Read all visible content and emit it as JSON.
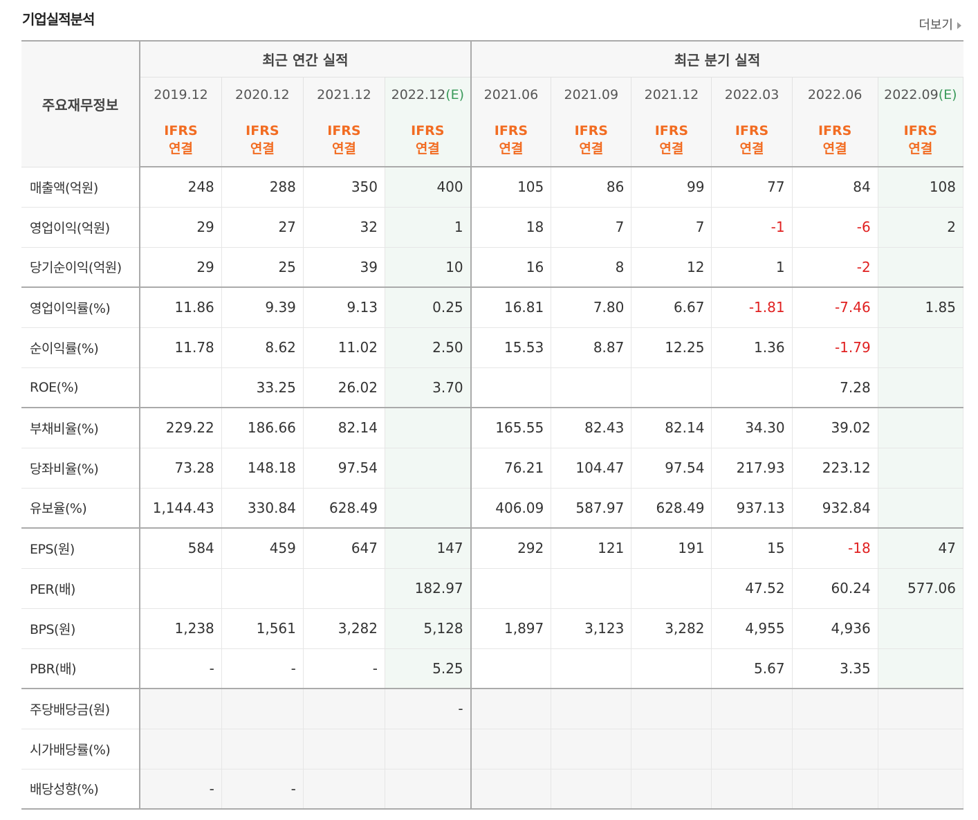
{
  "title": "기업실적분석",
  "more": "더보기",
  "header": {
    "row_label": "주요재무정보",
    "annual_group": "최근 연간 실적",
    "quarter_group": "최근 분기 실적",
    "est_mark": "(E)",
    "ifrs_line1": "IFRS",
    "ifrs_line2": "연결",
    "periods": [
      "2019.12",
      "2020.12",
      "2021.12",
      "2022.12",
      "2021.06",
      "2021.09",
      "2021.12",
      "2022.03",
      "2022.06",
      "2022.09"
    ]
  },
  "rows": [
    {
      "label": "매출액(억원)",
      "values": [
        "248",
        "288",
        "350",
        "400",
        "105",
        "86",
        "99",
        "77",
        "84",
        "108"
      ]
    },
    {
      "label": "영업이익(억원)",
      "values": [
        "29",
        "27",
        "32",
        "1",
        "18",
        "7",
        "7",
        "-1",
        "-6",
        "2"
      ]
    },
    {
      "label": "당기순이익(억원)",
      "values": [
        "29",
        "25",
        "39",
        "10",
        "16",
        "8",
        "12",
        "1",
        "-2",
        ""
      ]
    },
    {
      "label": "영업이익률(%)",
      "values": [
        "11.86",
        "9.39",
        "9.13",
        "0.25",
        "16.81",
        "7.80",
        "6.67",
        "-1.81",
        "-7.46",
        "1.85"
      ]
    },
    {
      "label": "순이익률(%)",
      "values": [
        "11.78",
        "8.62",
        "11.02",
        "2.50",
        "15.53",
        "8.87",
        "12.25",
        "1.36",
        "-1.79",
        ""
      ]
    },
    {
      "label": "ROE(%)",
      "values": [
        "",
        "33.25",
        "26.02",
        "3.70",
        "",
        "",
        "",
        "",
        "7.28",
        ""
      ]
    },
    {
      "label": "부채비율(%)",
      "values": [
        "229.22",
        "186.66",
        "82.14",
        "",
        "165.55",
        "82.43",
        "82.14",
        "34.30",
        "39.02",
        ""
      ]
    },
    {
      "label": "당좌비율(%)",
      "values": [
        "73.28",
        "148.18",
        "97.54",
        "",
        "76.21",
        "104.47",
        "97.54",
        "217.93",
        "223.12",
        ""
      ]
    },
    {
      "label": "유보율(%)",
      "values": [
        "1,144.43",
        "330.84",
        "628.49",
        "",
        "406.09",
        "587.97",
        "628.49",
        "937.13",
        "932.84",
        ""
      ]
    },
    {
      "label": "EPS(원)",
      "values": [
        "584",
        "459",
        "647",
        "147",
        "292",
        "121",
        "191",
        "15",
        "-18",
        "47"
      ]
    },
    {
      "label": "PER(배)",
      "values": [
        "",
        "",
        "",
        "182.97",
        "",
        "",
        "",
        "47.52",
        "60.24",
        "577.06"
      ]
    },
    {
      "label": "BPS(원)",
      "values": [
        "1,238",
        "1,561",
        "3,282",
        "5,128",
        "1,897",
        "3,123",
        "3,282",
        "4,955",
        "4,936",
        ""
      ]
    },
    {
      "label": "PBR(배)",
      "values": [
        "-",
        "-",
        "-",
        "5.25",
        "",
        "",
        "",
        "5.67",
        "3.35",
        ""
      ]
    },
    {
      "label": "주당배당금(원)",
      "values": [
        "",
        "",
        "",
        "-",
        "",
        "",
        "",
        "",
        "",
        ""
      ]
    },
    {
      "label": "시가배당률(%)",
      "values": [
        "",
        "",
        "",
        "",
        "",
        "",
        "",
        "",
        "",
        ""
      ]
    },
    {
      "label": "배당성향(%)",
      "values": [
        "-",
        "-",
        "",
        "",
        "",
        "",
        "",
        "",
        "",
        ""
      ]
    }
  ],
  "colors": {
    "negative": "#e02020",
    "ifrs": "#f26c22",
    "estimate_bg": "#f2f8f4"
  }
}
